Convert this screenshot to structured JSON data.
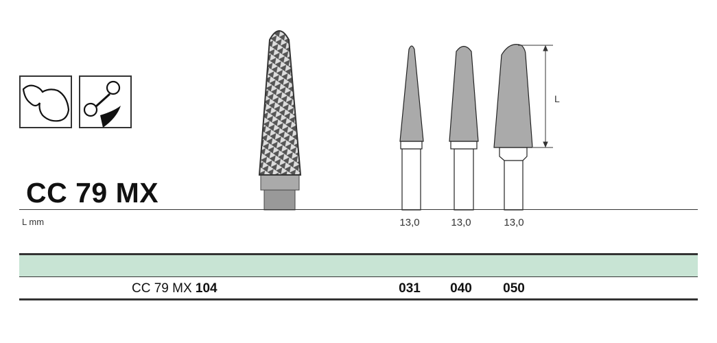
{
  "product": {
    "title": "CC 79 MX",
    "length_label": "L mm",
    "dimension_label": "L",
    "lengths": [
      "13,0",
      "13,0",
      "13,0"
    ],
    "order_prefix": "CC 79 MX",
    "order_shank": "104",
    "sizes": [
      "031",
      "040",
      "050"
    ]
  },
  "icons": [
    "tooth-crown-icon",
    "orthodontic-wire-icon"
  ],
  "colors": {
    "band": "#c8e4d4",
    "head": "#a9a9a9"
  }
}
